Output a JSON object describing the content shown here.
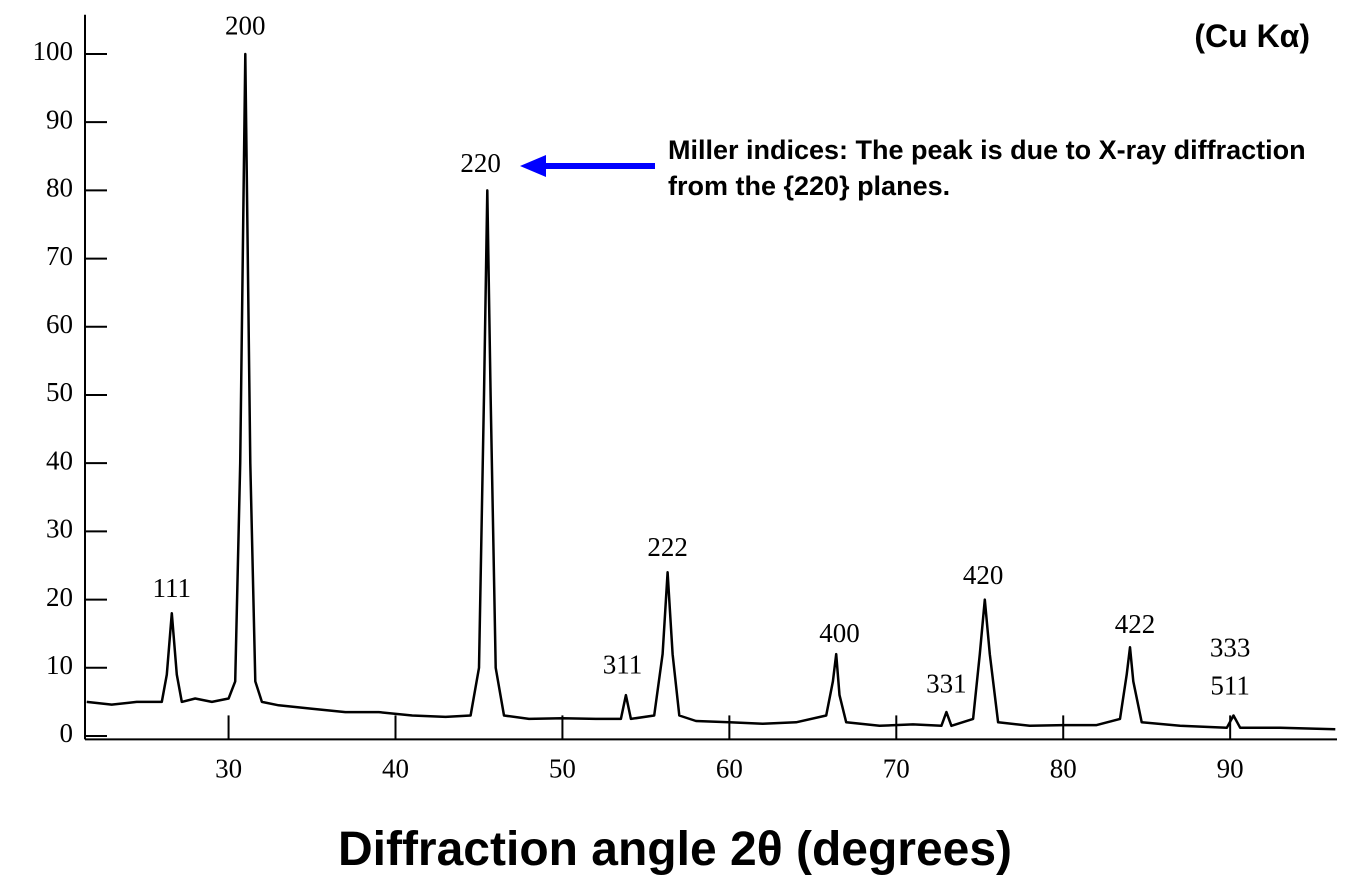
{
  "chart_data": {
    "type": "line",
    "x_label": "Diffraction angle 2θ (degrees)",
    "annotations": [
      {
        "text": "(Cu Kα)"
      },
      {
        "text": "Miller indices: The peak is due to X-ray diffraction from the {220} planes."
      }
    ],
    "x": [
      21.5,
      23,
      24.5,
      26,
      26.3,
      26.6,
      26.9,
      27.2,
      28,
      29,
      30,
      30.4,
      30.7,
      31.0,
      31.3,
      31.6,
      32,
      33,
      35,
      37,
      39,
      41,
      43,
      44.5,
      45.0,
      45.3,
      45.5,
      45.7,
      46.0,
      46.5,
      48,
      50,
      52,
      53.5,
      53.8,
      54.1,
      55.5,
      56.0,
      56.3,
      56.6,
      57.0,
      58,
      60,
      62,
      64,
      65.8,
      66.2,
      66.4,
      66.6,
      67.0,
      69,
      71,
      72.7,
      73.0,
      73.3,
      74.6,
      75.0,
      75.3,
      75.6,
      76.1,
      78,
      80,
      82,
      83.4,
      83.8,
      84.0,
      84.2,
      84.7,
      87,
      89.8,
      90.2,
      90.6,
      93,
      96.3
    ],
    "values": [
      5,
      4.6,
      5,
      5,
      9,
      18,
      9,
      5,
      5.5,
      5,
      5.5,
      8,
      40,
      100,
      40,
      8,
      5,
      4.5,
      4,
      3.5,
      3.5,
      3,
      2.8,
      3,
      10,
      50,
      80,
      50,
      10,
      3,
      2.5,
      2.6,
      2.5,
      2.5,
      6,
      2.5,
      3,
      12,
      24,
      12,
      3,
      2.2,
      2,
      1.8,
      2,
      3,
      8,
      12,
      6,
      2,
      1.5,
      1.7,
      1.5,
      3.5,
      1.5,
      2.5,
      12,
      20,
      12,
      2,
      1.5,
      1.6,
      1.6,
      2.5,
      9,
      13,
      8,
      2,
      1.5,
      1.2,
      3,
      1.2,
      1.2,
      1
    ],
    "color": "#000000",
    "peak_labels": [
      {
        "text": "111",
        "x": 26.6,
        "y": 21.3
      },
      {
        "text": "200",
        "x": 31.0,
        "y": 103.8
      },
      {
        "text": "220",
        "x": 45.1,
        "y": 83.6
      },
      {
        "text": "311",
        "x": 53.6,
        "y": 10.1
      },
      {
        "text": "222",
        "x": 56.3,
        "y": 27.3
      },
      {
        "text": "400",
        "x": 66.6,
        "y": 14.7
      },
      {
        "text": "331",
        "x": 73.0,
        "y": 7.3
      },
      {
        "text": "420",
        "x": 75.2,
        "y": 23.2
      },
      {
        "text": "422",
        "x": 84.3,
        "y": 16
      },
      {
        "text": "333",
        "x": 90.0,
        "y": 12.6
      },
      {
        "text": "511",
        "x": 90.0,
        "y": 7.0
      }
    ],
    "xlim": [
      21.4,
      96.4
    ],
    "xticks": [
      30,
      40,
      50,
      60,
      70,
      80,
      90
    ],
    "ylim": [
      -0.5,
      104
    ],
    "yticks": [
      0,
      10,
      20,
      30,
      40,
      50,
      60,
      70,
      80,
      90,
      100
    ],
    "grid": false
  }
}
